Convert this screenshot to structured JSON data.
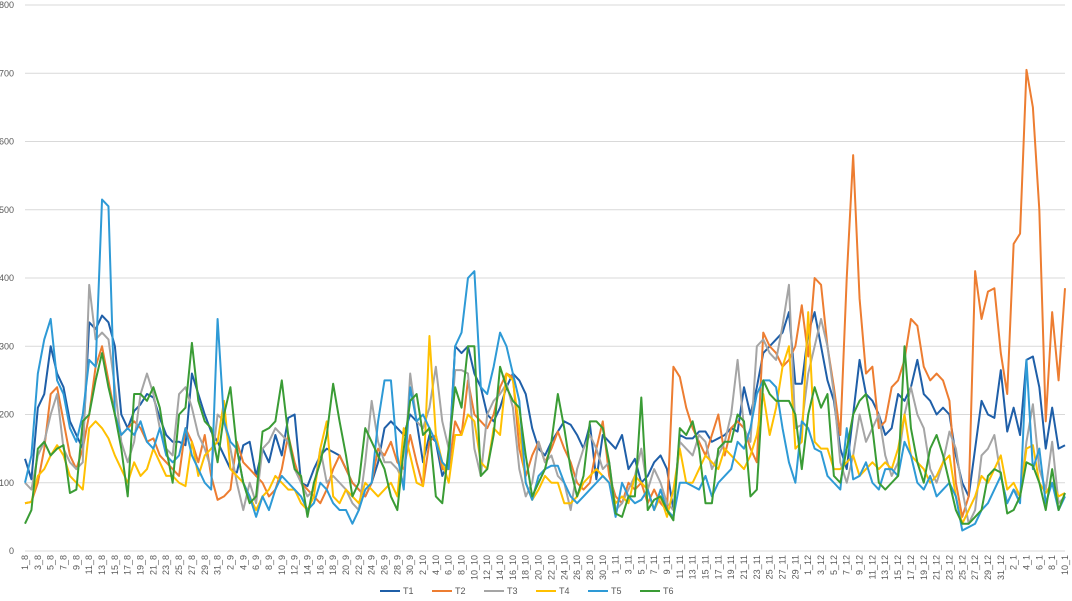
{
  "chart_data": {
    "type": "line",
    "categories": [
      "1_8",
      null,
      "3_8",
      null,
      "5_8",
      null,
      "7_8",
      null,
      "9_8",
      null,
      "11_8",
      null,
      "13_8",
      null,
      "15_8",
      null,
      "17_8",
      null,
      "19_8",
      null,
      "21_8",
      null,
      "23_8",
      null,
      "25_8",
      null,
      "27_8",
      null,
      "29_8",
      null,
      "31_8",
      null,
      "2_9",
      null,
      "4_9",
      null,
      "6_9",
      null,
      "8_9",
      null,
      "10_9",
      null,
      "12_9",
      null,
      "14_9",
      null,
      "16_9",
      null,
      "18_9",
      null,
      "20_9",
      null,
      "22_9",
      null,
      "24_9",
      null,
      "26_9",
      null,
      "28_9",
      null,
      "30_9",
      null,
      "2_10",
      null,
      "4_10",
      null,
      "6_10",
      null,
      "8_10",
      null,
      "10_10",
      null,
      "12_10",
      null,
      "14_10",
      null,
      "16_10",
      null,
      "18_10",
      null,
      "20_10",
      null,
      "22_10",
      null,
      "24_10",
      null,
      "26_10",
      null,
      "28_10",
      null,
      "30_10",
      null,
      "1_11",
      null,
      "3_11",
      null,
      "5_11",
      null,
      "7_11",
      null,
      "9_11",
      null,
      "11_11",
      null,
      "13_11",
      null,
      "15_11",
      null,
      "17_11",
      null,
      "19_11",
      null,
      "21_11",
      null,
      "23_11",
      null,
      "25_11",
      null,
      "27_11",
      null,
      "29_11",
      null,
      "1_12",
      null,
      "3_12",
      null,
      "5_12",
      null,
      "7_12",
      null,
      "9_12",
      null,
      "11_12",
      null,
      "13_12",
      null,
      "15_12",
      null,
      "17_12",
      null,
      "19_12",
      null,
      "21_12",
      null,
      "23_12",
      null,
      "25_12",
      null,
      "27_12",
      null,
      "29_12",
      null,
      "31_12",
      null,
      "2_1",
      null,
      "4_1",
      null,
      "6_1",
      null,
      "8_1",
      null,
      "10_1"
    ],
    "series": [
      {
        "name": "T1",
        "color": "#1f5fa8",
        "values": [
          135,
          105,
          210,
          230,
          300,
          260,
          240,
          190,
          170,
          150,
          335,
          325,
          345,
          335,
          300,
          200,
          180,
          205,
          215,
          230,
          225,
          195,
          170,
          160,
          160,
          155,
          260,
          230,
          200,
          175,
          160,
          140,
          120,
          115,
          155,
          160,
          110,
          150,
          130,
          170,
          140,
          195,
          200,
          100,
          95,
          120,
          140,
          150,
          145,
          140,
          120,
          100,
          90,
          80,
          100,
          130,
          180,
          190,
          180,
          170,
          200,
          190,
          130,
          170,
          160,
          110,
          130,
          300,
          290,
          300,
          260,
          240,
          200,
          190,
          210,
          240,
          260,
          250,
          230,
          180,
          150,
          140,
          160,
          175,
          190,
          185,
          170,
          150,
          185,
          105,
          170,
          160,
          150,
          170,
          120,
          135,
          100,
          110,
          130,
          140,
          120,
          60,
          170,
          165,
          165,
          175,
          175,
          160,
          165,
          170,
          180,
          175,
          240,
          200,
          240,
          290,
          300,
          310,
          320,
          350,
          245,
          245,
          320,
          350,
          300,
          250,
          220,
          150,
          120,
          200,
          280,
          230,
          220,
          200,
          170,
          180,
          230,
          220,
          240,
          280,
          230,
          220,
          200,
          210,
          200,
          140,
          100,
          80,
          150,
          220,
          200,
          195,
          265,
          175,
          210,
          170,
          280,
          285,
          240,
          150,
          210,
          150,
          155
        ]
      },
      {
        "name": "T2",
        "color": "#ed7d31",
        "values": [
          70,
          72,
          100,
          150,
          230,
          240,
          190,
          140,
          120,
          150,
          200,
          270,
          300,
          250,
          200,
          170,
          180,
          190,
          180,
          160,
          165,
          140,
          130,
          120,
          110,
          180,
          160,
          130,
          170,
          110,
          75,
          80,
          90,
          160,
          130,
          120,
          110,
          100,
          80,
          90,
          120,
          170,
          130,
          100,
          90,
          80,
          70,
          90,
          120,
          140,
          120,
          100,
          90,
          80,
          100,
          150,
          140,
          160,
          130,
          120,
          170,
          130,
          95,
          160,
          170,
          120,
          120,
          190,
          170,
          250,
          200,
          190,
          180,
          200,
          240,
          260,
          255,
          150,
          110,
          140,
          160,
          130,
          150,
          175,
          150,
          130,
          100,
          90,
          100,
          150,
          190,
          110,
          80,
          70,
          100,
          90,
          100,
          70,
          90,
          70,
          60,
          270,
          255,
          210,
          180,
          160,
          140,
          170,
          200,
          140,
          180,
          190,
          180,
          150,
          130,
          320,
          300,
          290,
          270,
          280,
          300,
          360,
          285,
          400,
          390,
          300,
          240,
          170,
          400,
          580,
          370,
          260,
          270,
          180,
          190,
          240,
          250,
          280,
          340,
          330,
          270,
          250,
          260,
          250,
          220,
          100,
          50,
          80,
          410,
          340,
          380,
          385,
          290,
          230,
          450,
          465,
          705,
          650,
          500,
          190,
          350,
          250,
          385
        ]
      },
      {
        "name": "T3",
        "color": "#a5a5a5",
        "values": [
          100,
          90,
          140,
          160,
          200,
          230,
          150,
          130,
          120,
          130,
          390,
          310,
          320,
          310,
          240,
          160,
          130,
          160,
          230,
          260,
          230,
          180,
          150,
          140,
          230,
          240,
          210,
          170,
          150,
          120,
          200,
          190,
          150,
          100,
          60,
          100,
          70,
          150,
          160,
          180,
          170,
          160,
          120,
          100,
          80,
          90,
          150,
          100,
          110,
          100,
          90,
          70,
          60,
          130,
          220,
          160,
          130,
          130,
          120,
          100,
          260,
          190,
          180,
          210,
          270,
          190,
          150,
          265,
          265,
          260,
          150,
          110,
          200,
          220,
          230,
          245,
          210,
          120,
          80,
          100,
          160,
          130,
          140,
          110,
          100,
          60,
          120,
          150,
          170,
          150,
          120,
          130,
          60,
          70,
          90,
          110,
          150,
          90,
          120,
          100,
          70,
          60,
          160,
          150,
          140,
          170,
          160,
          120,
          140,
          160,
          200,
          280,
          180,
          160,
          300,
          310,
          290,
          280,
          330,
          390,
          180,
          185,
          260,
          300,
          340,
          300,
          230,
          130,
          100,
          140,
          200,
          160,
          180,
          200,
          140,
          110,
          130,
          200,
          240,
          200,
          180,
          120,
          100,
          130,
          175,
          150,
          90,
          40,
          60,
          140,
          150,
          170,
          110,
          70,
          90,
          80,
          160,
          215,
          120,
          90,
          160,
          70,
          80
        ]
      },
      {
        "name": "T4",
        "color": "#ffc000",
        "values": [
          70,
          72,
          110,
          120,
          140,
          155,
          140,
          110,
          100,
          90,
          180,
          190,
          180,
          165,
          140,
          120,
          100,
          130,
          110,
          120,
          150,
          130,
          110,
          110,
          100,
          95,
          160,
          110,
          140,
          150,
          160,
          220,
          120,
          110,
          100,
          80,
          60,
          80,
          90,
          110,
          100,
          90,
          90,
          70,
          60,
          80,
          150,
          190,
          80,
          70,
          90,
          80,
          70,
          100,
          90,
          80,
          90,
          100,
          80,
          180,
          140,
          100,
          95,
          315,
          170,
          130,
          100,
          170,
          170,
          200,
          190,
          130,
          120,
          180,
          170,
          260,
          250,
          180,
          100,
          75,
          90,
          110,
          100,
          100,
          70,
          70,
          80,
          100,
          110,
          120,
          110,
          100,
          70,
          80,
          70,
          110,
          100,
          90,
          60,
          80,
          50,
          90,
          150,
          100,
          100,
          120,
          140,
          130,
          120,
          150,
          140,
          130,
          120,
          140,
          170,
          230,
          170,
          210,
          270,
          300,
          150,
          160,
          350,
          160,
          150,
          150,
          120,
          120,
          130,
          140,
          110,
          120,
          130,
          120,
          130,
          120,
          150,
          200,
          140,
          130,
          120,
          100,
          110,
          130,
          140,
          80,
          40,
          60,
          80,
          110,
          100,
          120,
          140,
          90,
          100,
          80,
          150,
          155,
          100,
          85,
          100,
          80,
          85
        ]
      },
      {
        "name": "T5",
        "color": "#2e9ad6",
        "values": [
          100,
          140,
          260,
          310,
          340,
          250,
          230,
          180,
          160,
          200,
          280,
          270,
          515,
          505,
          200,
          170,
          180,
          170,
          190,
          160,
          150,
          180,
          140,
          130,
          140,
          180,
          140,
          120,
          100,
          90,
          340,
          190,
          160,
          150,
          100,
          80,
          50,
          80,
          60,
          90,
          110,
          100,
          90,
          80,
          60,
          70,
          100,
          90,
          70,
          60,
          60,
          40,
          60,
          90,
          100,
          190,
          250,
          250,
          140,
          90,
          240,
          190,
          200,
          180,
          160,
          130,
          120,
          300,
          320,
          400,
          410,
          240,
          230,
          270,
          320,
          300,
          260,
          220,
          100,
          75,
          110,
          120,
          125,
          125,
          100,
          80,
          70,
          80,
          90,
          100,
          110,
          100,
          50,
          100,
          80,
          70,
          75,
          90,
          60,
          90,
          60,
          50,
          100,
          100,
          95,
          90,
          110,
          80,
          100,
          110,
          120,
          160,
          150,
          180,
          230,
          250,
          250,
          240,
          180,
          130,
          100,
          190,
          180,
          150,
          145,
          110,
          100,
          90,
          180,
          105,
          110,
          130,
          100,
          90,
          120,
          120,
          110,
          160,
          140,
          100,
          90,
          110,
          80,
          90,
          100,
          80,
          30,
          35,
          40,
          60,
          70,
          90,
          110,
          70,
          90,
          70,
          280,
          120,
          150,
          70,
          100,
          60,
          80
        ]
      },
      {
        "name": "T6",
        "color": "#3a9c35",
        "values": [
          40,
          60,
          150,
          160,
          140,
          150,
          155,
          85,
          90,
          190,
          200,
          250,
          290,
          240,
          200,
          150,
          80,
          230,
          230,
          220,
          240,
          210,
          150,
          100,
          200,
          210,
          305,
          220,
          190,
          180,
          130,
          200,
          240,
          150,
          100,
          70,
          80,
          175,
          180,
          190,
          250,
          170,
          120,
          110,
          50,
          100,
          130,
          170,
          245,
          190,
          140,
          80,
          100,
          180,
          160,
          140,
          120,
          80,
          60,
          150,
          220,
          230,
          170,
          180,
          80,
          70,
          150,
          240,
          210,
          300,
          300,
          110,
          120,
          170,
          270,
          240,
          220,
          210,
          140,
          80,
          100,
          120,
          160,
          230,
          180,
          120,
          80,
          110,
          190,
          190,
          180,
          130,
          55,
          50,
          80,
          80,
          225,
          60,
          75,
          80,
          60,
          45,
          180,
          170,
          190,
          150,
          70,
          70,
          150,
          160,
          160,
          200,
          190,
          80,
          90,
          250,
          230,
          220,
          220,
          220,
          200,
          120,
          200,
          240,
          210,
          230,
          110,
          100,
          150,
          200,
          220,
          230,
          180,
          100,
          90,
          100,
          110,
          300,
          180,
          130,
          100,
          150,
          170,
          140,
          100,
          60,
          40,
          40,
          50,
          60,
          110,
          120,
          115,
          55,
          60,
          80,
          130,
          125,
          100,
          60,
          120,
          60,
          85
        ]
      }
    ],
    "ylim": [
      0,
      800
    ],
    "yticks": [
      0,
      100,
      200,
      300,
      400,
      500,
      600,
      700,
      800
    ],
    "grid": true,
    "legend": "bottom"
  }
}
